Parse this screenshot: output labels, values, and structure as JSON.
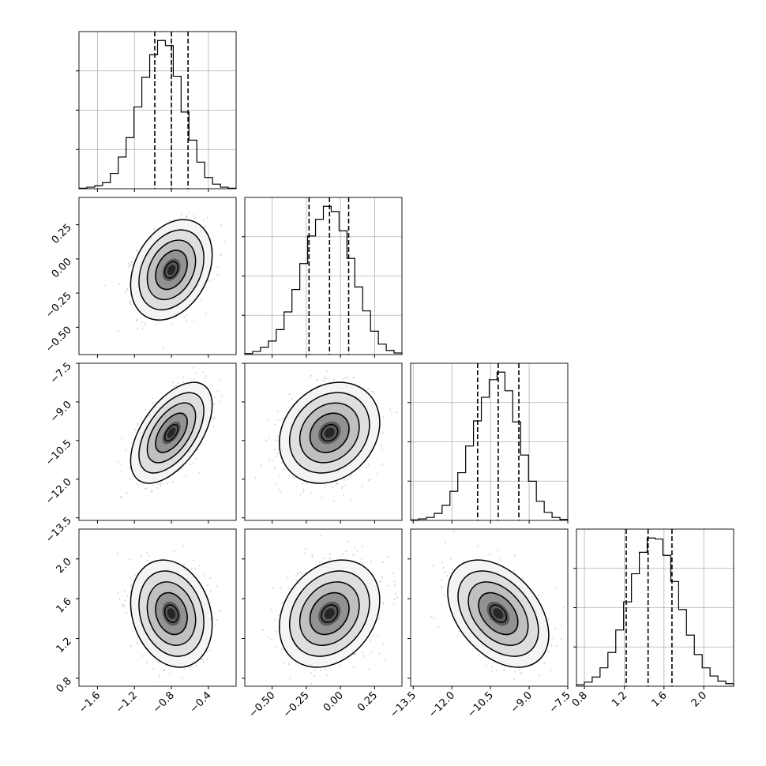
{
  "chart_data": {
    "type": "corner",
    "colors": {
      "line": "#000000",
      "grid": "#b0b0b0",
      "density": "#000000",
      "background": "#ffffff"
    },
    "grid": true,
    "params": [
      {
        "range": [
          -1.8,
          -0.1
        ],
        "ticks": [
          -1.6,
          -1.2,
          -0.8,
          -0.4
        ],
        "tick_labels": [
          "−1.6",
          "−1.2",
          "−0.8",
          "−0.4"
        ],
        "hist_counts": [
          1,
          3,
          6,
          12,
          30,
          62,
          100,
          160,
          218,
          262,
          290,
          280,
          220,
          150,
          95,
          52,
          22,
          9,
          3,
          1
        ],
        "quantiles": [
          -0.98,
          -0.8,
          -0.62
        ]
      },
      {
        "range": [
          -0.7,
          0.45
        ],
        "ticks": [
          -0.5,
          -0.25,
          0.0,
          0.25
        ],
        "tick_labels": [
          "−0.50",
          "−0.25",
          "0.00",
          "0.25"
        ],
        "hist_counts": [
          2,
          6,
          14,
          26,
          48,
          82,
          125,
          175,
          228,
          260,
          285,
          275,
          238,
          185,
          130,
          84,
          45,
          20,
          8,
          3
        ],
        "quantiles": [
          -0.23,
          -0.08,
          0.06
        ]
      },
      {
        "range": [
          -13.6,
          -7.5
        ],
        "ticks": [
          -13.5,
          -12.0,
          -10.5,
          -9.0,
          -7.5
        ],
        "tick_labels": [
          "−13.5",
          "−12.0",
          "−10.5",
          "−9.0",
          "−7.5"
        ],
        "hist_counts": [
          1,
          3,
          6,
          14,
          30,
          58,
          95,
          148,
          198,
          245,
          280,
          295,
          258,
          196,
          130,
          78,
          38,
          16,
          6,
          2
        ],
        "quantiles": [
          -11.0,
          -10.2,
          -9.4
        ]
      },
      {
        "range": [
          0.72,
          2.3
        ],
        "ticks": [
          0.8,
          1.2,
          1.6,
          2.0
        ],
        "tick_labels": [
          "0.8",
          "1.2",
          "1.6",
          "2.0"
        ],
        "hist_counts": [
          3,
          8,
          18,
          36,
          66,
          110,
          165,
          220,
          262,
          290,
          288,
          256,
          205,
          150,
          100,
          62,
          36,
          20,
          10,
          5
        ],
        "quantiles": [
          1.22,
          1.44,
          1.68
        ]
      }
    ],
    "pairs": [
      {
        "row": 1,
        "col": 0,
        "mean": [
          -0.8,
          -0.08
        ],
        "sd": [
          0.18,
          0.15
        ],
        "rho": 0.3
      },
      {
        "row": 2,
        "col": 0,
        "mean": [
          -0.8,
          -10.2
        ],
        "sd": [
          0.18,
          0.8
        ],
        "rho": 0.55
      },
      {
        "row": 2,
        "col": 1,
        "mean": [
          -0.08,
          -10.2
        ],
        "sd": [
          0.15,
          0.8
        ],
        "rho": 0.2
      },
      {
        "row": 3,
        "col": 0,
        "mean": [
          -0.8,
          1.45
        ],
        "sd": [
          0.18,
          0.22
        ],
        "rho": -0.2
      },
      {
        "row": 3,
        "col": 1,
        "mean": [
          -0.08,
          1.45
        ],
        "sd": [
          0.15,
          0.22
        ],
        "rho": 0.25
      },
      {
        "row": 3,
        "col": 2,
        "mean": [
          -10.2,
          1.45
        ],
        "sd": [
          0.8,
          0.22
        ],
        "rho": -0.4
      }
    ]
  }
}
